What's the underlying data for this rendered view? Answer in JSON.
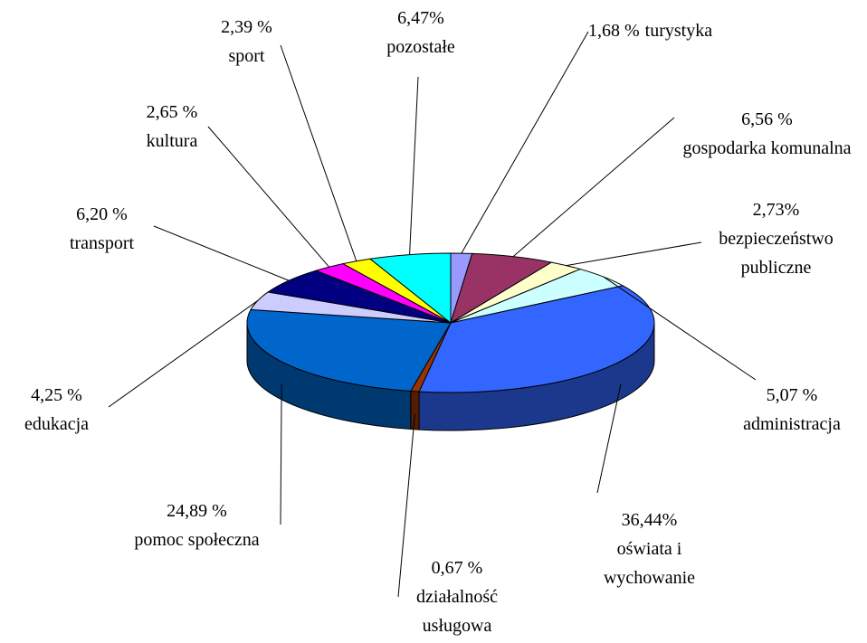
{
  "chart_data": {
    "type": "pie3d",
    "categories": [
      "turystyka",
      "gospodarka komunalna",
      "bezpieczeństwo publiczne",
      "administracja",
      "oświata i wychowanie",
      "działalność usługowa",
      "pomoc społeczna",
      "edukacja",
      "transport",
      "kultura",
      "sport",
      "pozostałe"
    ],
    "values": [
      1.68,
      6.56,
      2.73,
      5.07,
      36.44,
      0.67,
      24.89,
      4.25,
      6.2,
      2.65,
      2.39,
      6.47
    ],
    "value_labels": [
      "1,68 %",
      "6,56 %",
      "2,73%",
      "5,07 %",
      "36,44%",
      "0,67 %",
      "24,89 %",
      "4,25 %",
      "6,20 %",
      "2,65 %",
      "2,39 %",
      "6,47%"
    ],
    "colors": [
      "#9999ff",
      "#993366",
      "#ffffcc",
      "#ccffff",
      "#3366ff",
      "#993300",
      "#0066cc",
      "#ccccff",
      "#000080",
      "#ff00ff",
      "#ffff00",
      "#00ffff"
    ]
  }
}
